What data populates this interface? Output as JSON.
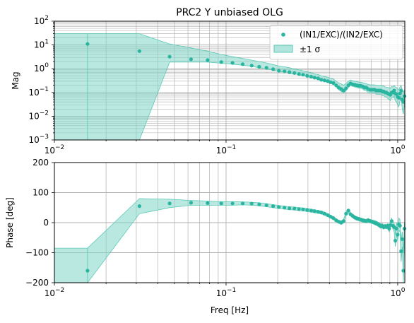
{
  "figure": {
    "title": "PRC2 Y unbiased OLG",
    "xlabel": "Freq [Hz]"
  },
  "colors": {
    "series": "#2ab5a0",
    "band_fill": "#7fd6c8",
    "band_edge": "#5cc9b6",
    "grid": "#b0b0b0",
    "axes": "#000000"
  },
  "chart_data": [
    {
      "type": "scatter",
      "panel": "magnitude",
      "title": "PRC2 Y unbiased OLG",
      "ylabel": "Mag",
      "xscale": "log",
      "yscale": "log",
      "xlim": [
        0.01,
        1.1
      ],
      "ylim": [
        0.001,
        100
      ],
      "xticks": [
        {
          "value": 0.01,
          "base": "10",
          "exp": "−2"
        },
        {
          "value": 0.1,
          "base": "10",
          "exp": "−1"
        },
        {
          "value": 1,
          "base": "10",
          "exp": "0"
        }
      ],
      "yticks": [
        {
          "value": 0.001,
          "base": "10",
          "exp": "−3"
        },
        {
          "value": 0.01,
          "base": "10",
          "exp": "−2"
        },
        {
          "value": 0.1,
          "base": "10",
          "exp": "−1"
        },
        {
          "value": 1,
          "base": "10",
          "exp": "0"
        },
        {
          "value": 10,
          "base": "10",
          "exp": "1"
        },
        {
          "value": 100,
          "base": "10",
          "exp": "2"
        }
      ],
      "grid": true,
      "legend": {
        "placement": "top-right",
        "entries": [
          {
            "label": "(IN1/EXC)/(IN2/EXC)",
            "kind": "marker"
          },
          {
            "label": "±1 σ",
            "kind": "band"
          }
        ]
      },
      "x": [
        0.0156,
        0.0313,
        0.0469,
        0.0625,
        0.0781,
        0.0938,
        0.109,
        0.125,
        0.141,
        0.156,
        0.172,
        0.188,
        0.203,
        0.219,
        0.234,
        0.25,
        0.266,
        0.281,
        0.297,
        0.313,
        0.328,
        0.344,
        0.359,
        0.375,
        0.391,
        0.406,
        0.422,
        0.438,
        0.453,
        0.469,
        0.484,
        0.5,
        0.516,
        0.531,
        0.547,
        0.563,
        0.578,
        0.594,
        0.609,
        0.625,
        0.641,
        0.656,
        0.672,
        0.688,
        0.703,
        0.719,
        0.734,
        0.75,
        0.766,
        0.781,
        0.797,
        0.813,
        0.828,
        0.844,
        0.859,
        0.875,
        0.891,
        0.906,
        0.922,
        0.938,
        0.953,
        0.969,
        0.984,
        1.0,
        1.016,
        1.031,
        1.047,
        1.063,
        1.078,
        1.094
      ],
      "y": [
        11,
        5.5,
        3.2,
        2.5,
        2.3,
        1.9,
        1.75,
        1.55,
        1.35,
        1.2,
        1.1,
        0.95,
        0.82,
        0.78,
        0.72,
        0.66,
        0.6,
        0.56,
        0.5,
        0.46,
        0.42,
        0.39,
        0.34,
        0.32,
        0.3,
        0.27,
        0.25,
        0.2,
        0.16,
        0.14,
        0.12,
        0.15,
        0.2,
        0.24,
        0.22,
        0.21,
        0.2,
        0.19,
        0.19,
        0.18,
        0.16,
        0.16,
        0.14,
        0.13,
        0.13,
        0.13,
        0.13,
        0.12,
        0.12,
        0.12,
        0.12,
        0.11,
        0.11,
        0.1,
        0.1,
        0.09,
        0.085,
        0.08,
        0.1,
        0.1,
        0.12,
        0.09,
        0.085,
        0.065,
        0.06,
        0.09,
        0.12,
        0.05,
        0.04,
        0.07
      ],
      "band_upper": [
        30,
        30,
        11,
        7.5,
        5.5,
        4.0,
        3.2,
        2.7,
        2.3,
        2.0,
        1.75,
        1.5,
        1.3,
        1.2,
        1.1,
        0.98,
        0.9,
        0.82,
        0.74,
        0.68,
        0.62,
        0.57,
        0.5,
        0.47,
        0.44,
        0.4,
        0.37,
        0.3,
        0.25,
        0.23,
        0.2,
        0.24,
        0.3,
        0.34,
        0.31,
        0.3,
        0.29,
        0.27,
        0.27,
        0.26,
        0.24,
        0.24,
        0.22,
        0.21,
        0.21,
        0.21,
        0.21,
        0.2,
        0.2,
        0.2,
        0.2,
        0.19,
        0.19,
        0.17,
        0.17,
        0.16,
        0.16,
        0.15,
        0.18,
        0.17,
        0.2,
        0.17,
        0.16,
        0.14,
        0.13,
        0.17,
        0.2,
        0.12,
        0.1,
        0.13
      ],
      "band_lower": [
        0.001,
        0.001,
        1.9,
        1.9,
        1.9,
        1.7,
        1.55,
        1.4,
        1.25,
        1.1,
        1.0,
        0.88,
        0.76,
        0.72,
        0.66,
        0.61,
        0.55,
        0.51,
        0.46,
        0.42,
        0.38,
        0.36,
        0.31,
        0.29,
        0.27,
        0.24,
        0.22,
        0.17,
        0.13,
        0.11,
        0.095,
        0.12,
        0.16,
        0.2,
        0.18,
        0.17,
        0.16,
        0.15,
        0.15,
        0.14,
        0.12,
        0.12,
        0.1,
        0.095,
        0.095,
        0.095,
        0.095,
        0.085,
        0.085,
        0.085,
        0.085,
        0.075,
        0.075,
        0.065,
        0.065,
        0.055,
        0.05,
        0.045,
        0.06,
        0.06,
        0.07,
        0.045,
        0.04,
        0.03,
        0.025,
        0.045,
        0.07,
        0.02,
        0.012,
        0.03
      ]
    },
    {
      "type": "scatter",
      "panel": "phase",
      "ylabel": "Phase [deg]",
      "xlabel": "Freq [Hz]",
      "xscale": "log",
      "yscale": "linear",
      "xlim": [
        0.01,
        1.1
      ],
      "ylim": [
        -200,
        200
      ],
      "xticks": [
        {
          "value": 0.01,
          "base": "10",
          "exp": "−2"
        },
        {
          "value": 0.1,
          "base": "10",
          "exp": "−1"
        },
        {
          "value": 1,
          "base": "10",
          "exp": "0"
        }
      ],
      "yticks": [
        {
          "value": -200,
          "label": "−200"
        },
        {
          "value": -100,
          "label": "−100"
        },
        {
          "value": 0,
          "label": "0"
        },
        {
          "value": 100,
          "label": "100"
        },
        {
          "value": 200,
          "label": "200"
        }
      ],
      "grid": true,
      "x": [
        0.0156,
        0.0313,
        0.0469,
        0.0625,
        0.0781,
        0.0938,
        0.109,
        0.125,
        0.141,
        0.156,
        0.172,
        0.188,
        0.203,
        0.219,
        0.234,
        0.25,
        0.266,
        0.281,
        0.297,
        0.313,
        0.328,
        0.344,
        0.359,
        0.375,
        0.391,
        0.406,
        0.422,
        0.438,
        0.453,
        0.469,
        0.484,
        0.5,
        0.516,
        0.531,
        0.547,
        0.563,
        0.578,
        0.594,
        0.609,
        0.625,
        0.641,
        0.656,
        0.672,
        0.688,
        0.703,
        0.719,
        0.734,
        0.75,
        0.766,
        0.781,
        0.797,
        0.813,
        0.828,
        0.844,
        0.859,
        0.875,
        0.891,
        0.906,
        0.922,
        0.938,
        0.953,
        0.969,
        0.984,
        1.0,
        1.016,
        1.031,
        1.047,
        1.063,
        1.078,
        1.094
      ],
      "y": [
        -160,
        55,
        64,
        66,
        65,
        64,
        64,
        64,
        63,
        61,
        58,
        55,
        52,
        50,
        48,
        47,
        45,
        44,
        42,
        40,
        38,
        36,
        34,
        30,
        25,
        20,
        15,
        8,
        3,
        0,
        5,
        30,
        40,
        28,
        22,
        17,
        14,
        12,
        10,
        8,
        6,
        5,
        8,
        5,
        4,
        2,
        0,
        -2,
        -5,
        -8,
        -12,
        -10,
        -15,
        -12,
        -14,
        -10,
        -20,
        -8,
        5,
        -10,
        -15,
        -60,
        -20,
        -40,
        -5,
        -10,
        -95,
        -55,
        -160,
        -20
      ],
      "band_upper": [
        -85,
        80,
        78,
        74,
        72,
        70,
        70,
        69,
        68,
        66,
        63,
        60,
        57,
        55,
        53,
        52,
        50,
        49,
        47,
        45,
        43,
        41,
        39,
        35,
        30,
        25,
        20,
        13,
        8,
        6,
        11,
        36,
        46,
        34,
        28,
        23,
        20,
        18,
        16,
        14,
        12,
        11,
        14,
        11,
        10,
        8,
        7,
        5,
        2,
        -1,
        -5,
        -3,
        -8,
        -5,
        -7,
        -3,
        -10,
        2,
        15,
        2,
        0,
        -40,
        0,
        -20,
        15,
        10,
        -60,
        -30,
        -100,
        0
      ],
      "band_lower": [
        -200,
        30,
        50,
        58,
        58,
        58,
        58,
        59,
        58,
        56,
        53,
        50,
        47,
        45,
        43,
        42,
        40,
        39,
        37,
        35,
        33,
        31,
        29,
        25,
        20,
        15,
        10,
        3,
        -2,
        -6,
        -1,
        24,
        34,
        22,
        16,
        11,
        8,
        6,
        4,
        2,
        0,
        -1,
        2,
        -1,
        -2,
        -4,
        -7,
        -9,
        -12,
        -15,
        -19,
        -17,
        -22,
        -19,
        -21,
        -17,
        -30,
        -18,
        -5,
        -22,
        -30,
        -80,
        -40,
        -60,
        -25,
        -30,
        -130,
        -80,
        -200,
        -40
      ]
    }
  ]
}
